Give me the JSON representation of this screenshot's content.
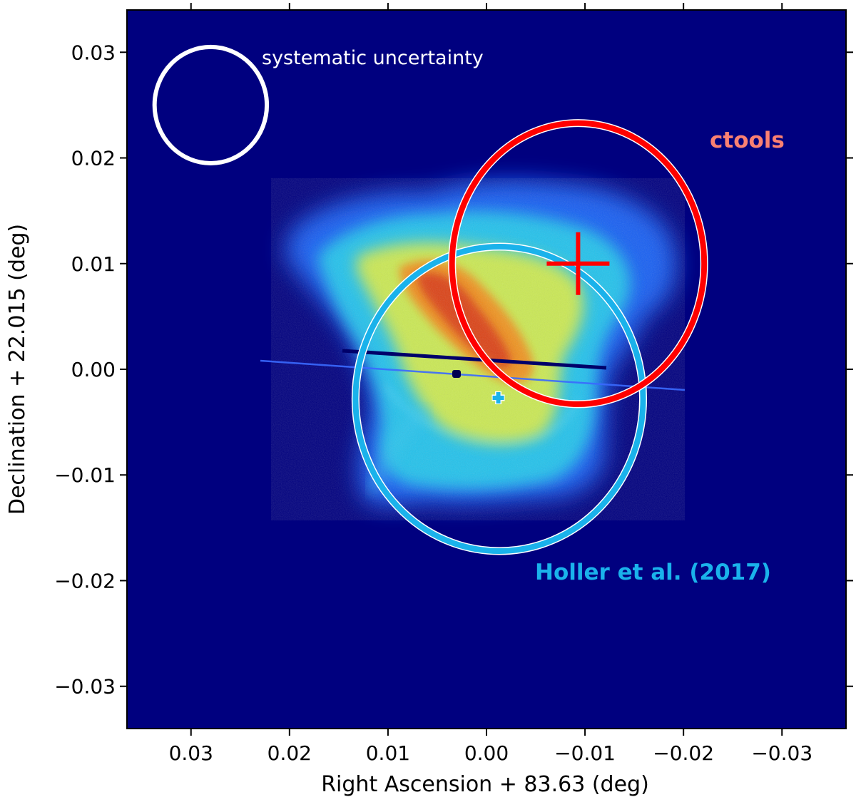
{
  "chart_data": {
    "type": "image",
    "title": "",
    "xlabel": "Right Ascension + 83.63 (deg)",
    "ylabel": "Declination + 22.015 (deg)",
    "x_axis_inverted": true,
    "xlim": [
      0.0365,
      -0.0365
    ],
    "ylim": [
      -0.034,
      0.034
    ],
    "xticks": [
      0.03,
      0.02,
      0.01,
      0.0,
      -0.01,
      -0.02,
      -0.03
    ],
    "xtick_labels": [
      "0.03",
      "0.02",
      "0.01",
      "0.00",
      "−0.01",
      "−0.02",
      "−0.03"
    ],
    "yticks": [
      0.03,
      0.02,
      0.01,
      0.0,
      -0.01,
      -0.02,
      -0.03
    ],
    "ytick_labels": [
      "0.03",
      "0.02",
      "0.01",
      "0.00",
      "−0.01",
      "−0.02",
      "−0.03"
    ],
    "colormap": "jet",
    "background_color": "#00007f",
    "annotations": {
      "systematic": {
        "label": "systematic uncertainty",
        "color": "#ffffff",
        "center": [
          0.028,
          0.025
        ],
        "radius_x": 0.0057,
        "radius_y": 0.0055
      },
      "ctools": {
        "label": "ctools",
        "color": "#ff0000",
        "label_color": "#fa8072",
        "center": [
          -0.0093,
          0.01
        ],
        "radius_x": 0.0128,
        "radius_y": 0.0133
      },
      "holler": {
        "label": "Holler et al. (2017)",
        "color": "#1ab2eb",
        "center": [
          -0.0013,
          -0.0028
        ],
        "radius_x": 0.0146,
        "radius_y": 0.0144
      }
    },
    "pulsar_marker": {
      "color": "#1ab2eb",
      "position": [
        -0.0012,
        -0.0027
      ]
    }
  }
}
